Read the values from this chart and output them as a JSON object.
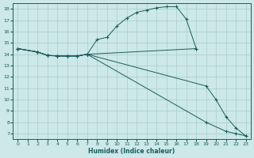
{
  "xlabel": "Humidex (Indice chaleur)",
  "bg_color": "#cce8e8",
  "grid_color": "#aacccc",
  "line_color": "#1a5c5c",
  "xlim": [
    -0.5,
    23.5
  ],
  "ylim": [
    6.5,
    18.5
  ],
  "xticks": [
    0,
    1,
    2,
    3,
    4,
    5,
    6,
    7,
    8,
    9,
    10,
    11,
    12,
    13,
    14,
    15,
    16,
    17,
    18,
    19,
    20,
    21,
    22,
    23
  ],
  "yticks": [
    7,
    8,
    9,
    10,
    11,
    12,
    13,
    14,
    15,
    16,
    17,
    18
  ],
  "line1_x": [
    0,
    2,
    3,
    4,
    5,
    6,
    7,
    8,
    9,
    10,
    11,
    12,
    13,
    14,
    15,
    16,
    17,
    18
  ],
  "line1_y": [
    14.5,
    14.2,
    13.9,
    13.85,
    13.85,
    13.85,
    14.0,
    15.3,
    15.5,
    16.5,
    17.2,
    17.7,
    17.9,
    18.1,
    18.2,
    18.2,
    17.1,
    14.5
  ],
  "line2_x": [
    0,
    2,
    3,
    4,
    5,
    6,
    7,
    18
  ],
  "line2_y": [
    14.5,
    14.2,
    13.9,
    13.85,
    13.85,
    13.85,
    14.0,
    14.5
  ],
  "line3_x": [
    0,
    2,
    3,
    4,
    5,
    6,
    7,
    19,
    20,
    21,
    22,
    23
  ],
  "line3_y": [
    14.5,
    14.2,
    13.9,
    13.85,
    13.85,
    13.85,
    14.0,
    11.2,
    10.0,
    8.5,
    7.5,
    6.8
  ],
  "line4_x": [
    0,
    2,
    3,
    4,
    5,
    6,
    7,
    19,
    21,
    22,
    23
  ],
  "line4_y": [
    14.5,
    14.2,
    13.9,
    13.85,
    13.85,
    13.85,
    14.0,
    8.0,
    7.2,
    7.0,
    6.8
  ]
}
